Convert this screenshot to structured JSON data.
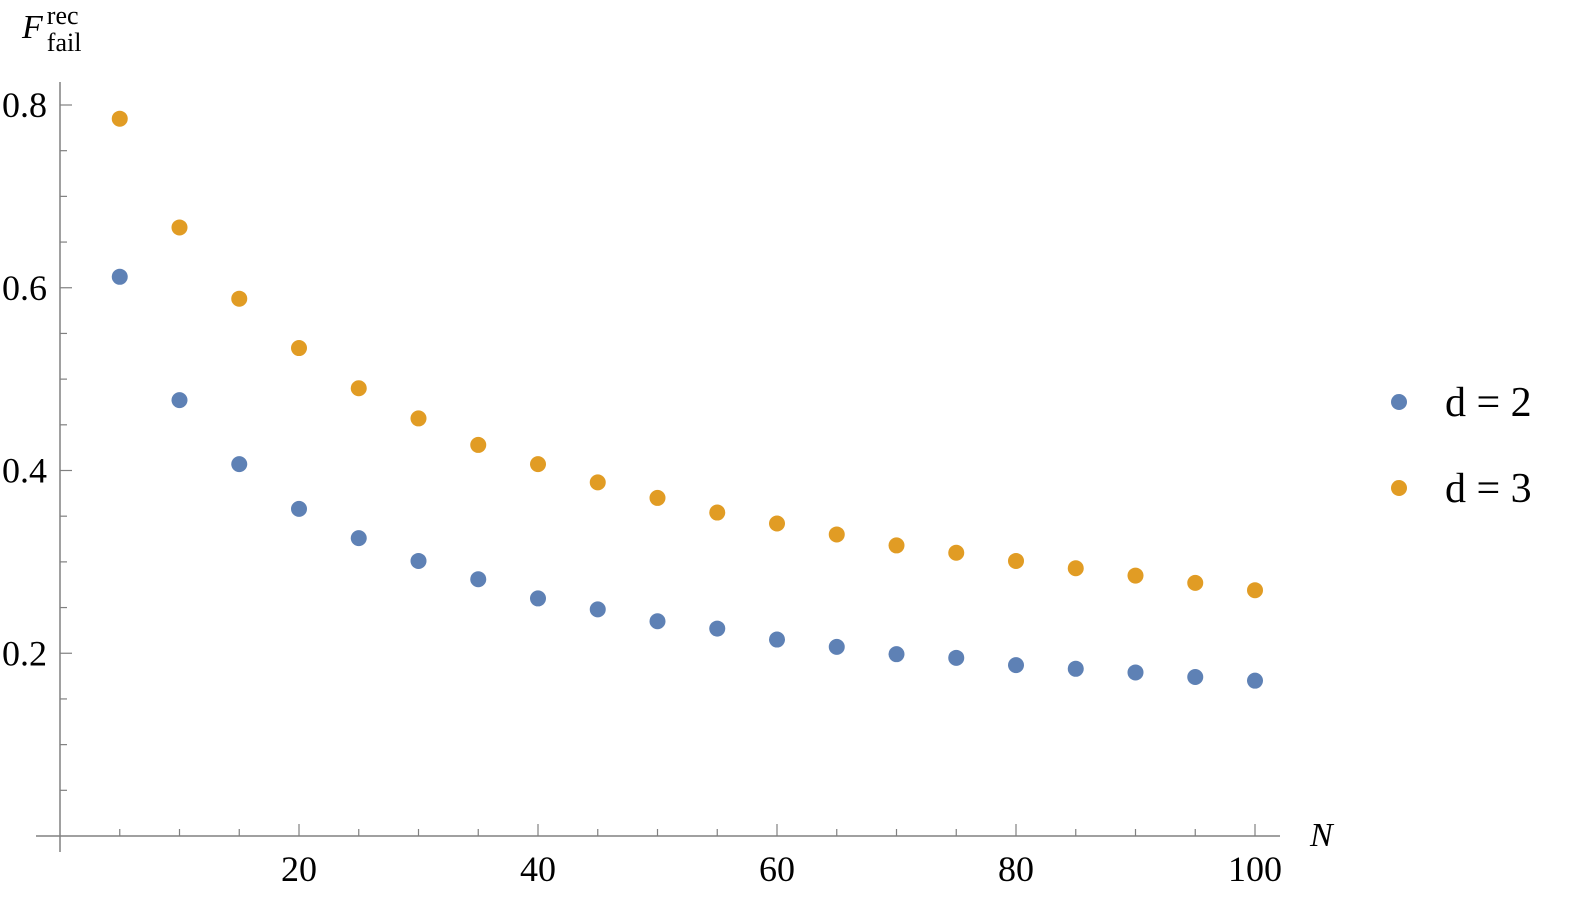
{
  "chart_data": {
    "type": "scatter",
    "title": "",
    "xlabel": "N",
    "ylabel": {
      "base": "F",
      "sup": "rec",
      "sub": "fail"
    },
    "xlim": [
      0,
      102
    ],
    "ylim": [
      0,
      0.8
    ],
    "x_ticks": [
      20,
      40,
      60,
      80,
      100
    ],
    "x_minor_step": 5,
    "y_ticks": [
      0.2,
      0.4,
      0.6,
      0.8
    ],
    "y_tick_labels": [
      "0.2",
      "0.4",
      "0.6",
      "0.8"
    ],
    "y_minor_step": 0.05,
    "grid": false,
    "legend_position": "right",
    "x": [
      5,
      10,
      15,
      20,
      25,
      30,
      35,
      40,
      45,
      50,
      55,
      60,
      65,
      70,
      75,
      80,
      85,
      90,
      95,
      100
    ],
    "series": [
      {
        "name": "d = 2",
        "color": "#5E81B5",
        "values": [
          0.612,
          0.477,
          0.407,
          0.358,
          0.326,
          0.301,
          0.281,
          0.26,
          0.248,
          0.235,
          0.227,
          0.215,
          0.207,
          0.199,
          0.195,
          0.187,
          0.183,
          0.179,
          0.174,
          0.17
        ]
      },
      {
        "name": "d = 3",
        "color": "#E19C24",
        "values": [
          0.785,
          0.666,
          0.588,
          0.534,
          0.49,
          0.457,
          0.428,
          0.407,
          0.387,
          0.37,
          0.354,
          0.342,
          0.33,
          0.318,
          0.31,
          0.301,
          0.293,
          0.285,
          0.277,
          0.269
        ]
      }
    ]
  }
}
